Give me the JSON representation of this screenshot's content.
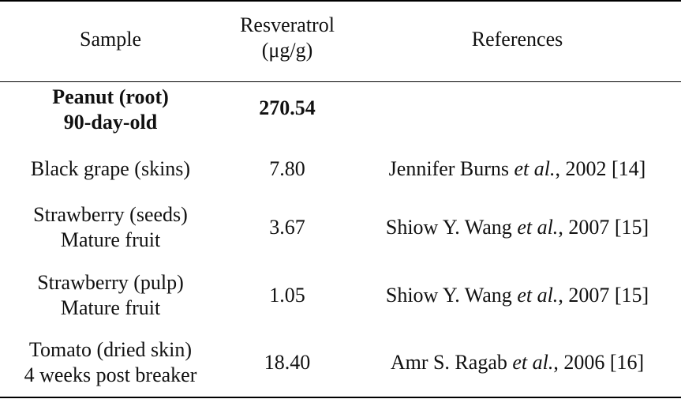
{
  "table": {
    "headers": {
      "sample": "Sample",
      "resveratrol_line1": "Resveratrol",
      "resveratrol_line2": "(μg/g)",
      "references": "References"
    },
    "rows": [
      {
        "sample_line1": "Peanut (root)",
        "sample_line2": "90-day-old",
        "value": "270.54",
        "ref_author": "",
        "ref_etal": "",
        "ref_tail": ""
      },
      {
        "sample_line1": "Black grape (skins)",
        "sample_line2": "",
        "value": "7.80",
        "ref_author": "Jennifer Burns ",
        "ref_etal": "et al.",
        "ref_tail": ", 2002 [14]"
      },
      {
        "sample_line1": "Strawberry (seeds)",
        "sample_line2": "Mature fruit",
        "value": "3.67",
        "ref_author": "Shiow Y. Wang ",
        "ref_etal": "et al.",
        "ref_tail": ", 2007 [15]"
      },
      {
        "sample_line1": "Strawberry (pulp)",
        "sample_line2": "Mature fruit",
        "value": "1.05",
        "ref_author": "Shiow Y. Wang ",
        "ref_etal": "et al.",
        "ref_tail": ", 2007 [15]"
      },
      {
        "sample_line1": "Tomato (dried skin)",
        "sample_line2": "4 weeks post breaker",
        "value": "18.40",
        "ref_author": "Amr S. Ragab ",
        "ref_etal": "et al.",
        "ref_tail": ", 2006 [16]"
      }
    ]
  }
}
